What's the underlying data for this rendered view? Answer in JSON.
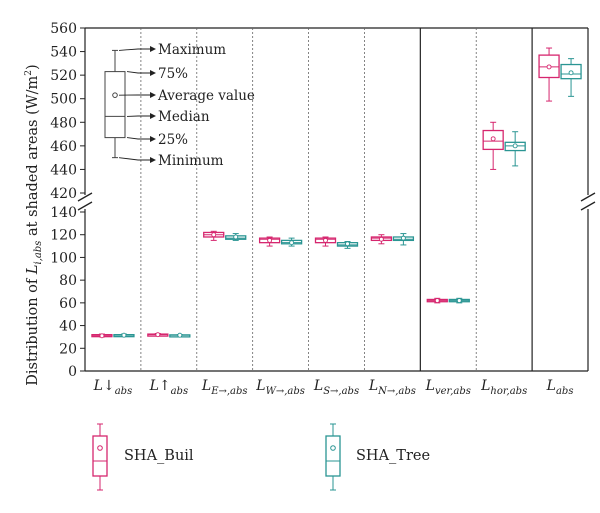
{
  "chart_data": {
    "type": "box",
    "y_axis_label": "Distribution of L_i,abs at shaded areas (W/m²)",
    "y_axis_label_parts": {
      "prefix": "Distribution of ",
      "L": "L",
      "sub": "i,abs",
      "mid": " at shaded areas (W/m",
      "sup": "2",
      "end": ")"
    },
    "y_lower": {
      "range": [
        0,
        145
      ],
      "ticks": [
        0,
        20,
        40,
        60,
        80,
        100,
        120,
        140
      ]
    },
    "y_upper": {
      "range": [
        420,
        560
      ],
      "ticks": [
        420,
        440,
        460,
        480,
        500,
        520,
        540,
        560
      ]
    },
    "axis_break": true,
    "categories": [
      {
        "base": "L",
        "arrow": "↓",
        "sub": "abs"
      },
      {
        "base": "L",
        "arrow": "↑",
        "sub": "abs"
      },
      {
        "base": "L",
        "arrow": "",
        "sub": "E→,abs"
      },
      {
        "base": "L",
        "arrow": "",
        "sub": "W→,abs"
      },
      {
        "base": "L",
        "arrow": "",
        "sub": "S→,abs"
      },
      {
        "base": "L",
        "arrow": "",
        "sub": "N→,abs"
      },
      {
        "base": "L",
        "arrow": "",
        "sub": "ver,abs"
      },
      {
        "base": "L",
        "arrow": "",
        "sub": "hor,abs"
      },
      {
        "base": "L",
        "arrow": "",
        "sub": "abs"
      }
    ],
    "series": [
      {
        "name": "SHA_Buil",
        "color": "#d6266e",
        "boxes": [
          {
            "min": 30,
            "q1": 30.5,
            "median": 31,
            "q3": 32,
            "max": 32.5,
            "mean": 31
          },
          {
            "min": 31.5,
            "q1": 31.8,
            "median": 32,
            "q3": 32.5,
            "max": 33,
            "mean": 32
          },
          {
            "min": 115,
            "q1": 118,
            "median": 120,
            "q3": 122,
            "max": 123,
            "mean": 120
          },
          {
            "min": 110,
            "q1": 113,
            "median": 116,
            "q3": 117,
            "max": 118,
            "mean": 115
          },
          {
            "min": 110,
            "q1": 113,
            "median": 116,
            "q3": 117,
            "max": 118,
            "mean": 115
          },
          {
            "min": 112,
            "q1": 115,
            "median": 117,
            "q3": 118,
            "max": 120,
            "mean": 116
          },
          {
            "min": 60,
            "q1": 61,
            "median": 62,
            "q3": 63,
            "max": 64,
            "mean": 62
          },
          {
            "min": 440,
            "q1": 457,
            "median": 464,
            "q3": 473,
            "max": 480,
            "mean": 466
          },
          {
            "min": 498,
            "q1": 518,
            "median": 527,
            "q3": 537,
            "max": 543,
            "mean": 527
          }
        ]
      },
      {
        "name": "SHA_Tree",
        "color": "#2a9593",
        "boxes": [
          {
            "min": 31,
            "q1": 31.3,
            "median": 31.5,
            "q3": 32,
            "max": 32.5,
            "mean": 31.5
          },
          {
            "min": 31,
            "q1": 31.2,
            "median": 31.5,
            "q3": 31.8,
            "max": 32,
            "mean": 31.5
          },
          {
            "min": 115,
            "q1": 116,
            "median": 117,
            "q3": 119,
            "max": 121,
            "mean": 118
          },
          {
            "min": 110,
            "q1": 112,
            "median": 113,
            "q3": 115,
            "max": 117,
            "mean": 113
          },
          {
            "min": 108,
            "q1": 110,
            "median": 111,
            "q3": 113,
            "max": 114,
            "mean": 112
          },
          {
            "min": 111,
            "q1": 115,
            "median": 116,
            "q3": 118,
            "max": 121,
            "mean": 117
          },
          {
            "min": 60,
            "q1": 61,
            "median": 62,
            "q3": 63,
            "max": 64,
            "mean": 62
          },
          {
            "min": 443,
            "q1": 456,
            "median": 460,
            "q3": 463,
            "max": 472,
            "mean": 460
          },
          {
            "min": 502,
            "q1": 517,
            "median": 521,
            "q3": 529,
            "max": 534,
            "mean": 522
          }
        ]
      }
    ],
    "key": {
      "labels": [
        "Maximum",
        "75%",
        "Average value",
        "Median",
        "25%",
        "Minimum"
      ],
      "sample": {
        "min": 450,
        "q1": 467,
        "median": 485,
        "q3": 523,
        "max": 541,
        "mean": 503
      }
    },
    "legend": {
      "position": "bottom",
      "items": [
        "SHA_Buil",
        "SHA_Tree"
      ]
    }
  }
}
